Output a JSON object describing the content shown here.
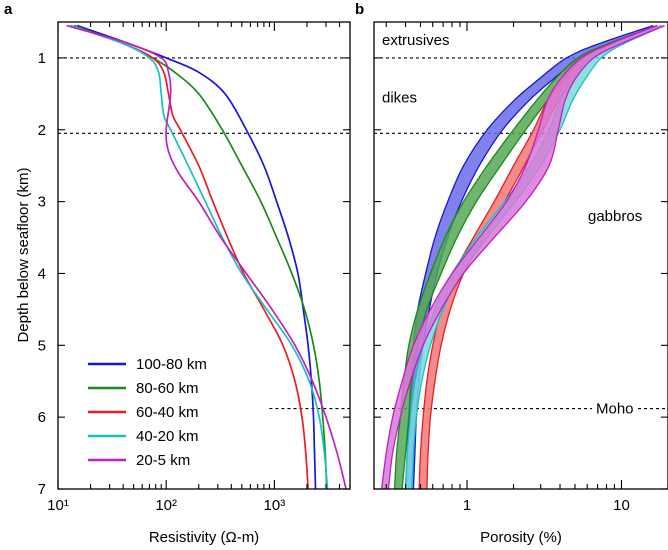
{
  "panel_a": {
    "letter": "a",
    "xlabel": "Resistivity (Ω-m)",
    "ylabel": "Depth below seafloor (km)"
  },
  "panel_b": {
    "letter": "b",
    "xlabel": "Porosity (%)"
  },
  "zones": [
    "extrusives",
    "dikes",
    "gabbros",
    "Moho"
  ],
  "chart_data": [
    {
      "type": "line",
      "panel": "a",
      "title": "",
      "xlabel": "Resistivity (Ω-m)",
      "ylabel": "Depth below seafloor (km)",
      "xscale": "log",
      "xlim": [
        10,
        5000
      ],
      "ylim": [
        7,
        0.5
      ],
      "x_ticks": [
        {
          "value": 10,
          "label": "10¹"
        },
        {
          "value": 100,
          "label": "10²"
        },
        {
          "value": 1000,
          "label": "10³"
        }
      ],
      "y_ticks": [
        1,
        2,
        3,
        4,
        5,
        6,
        7
      ],
      "legend": "lower-left",
      "reference_lines": [
        {
          "depth": 1.0,
          "extent": "full"
        },
        {
          "depth": 2.05,
          "extent": "full"
        },
        {
          "depth": 5.88,
          "extent": "right-portion"
        }
      ],
      "series": [
        {
          "name": "100-80 km",
          "color": "#1515e0",
          "depth": [
            0.55,
            0.8,
            1.0,
            1.2,
            1.5,
            2.0,
            2.5,
            3.0,
            3.5,
            4.0,
            4.5,
            5.0,
            5.5,
            6.0,
            6.5,
            7.0
          ],
          "resistivity": [
            15,
            45,
            100,
            200,
            350,
            550,
            800,
            1050,
            1350,
            1650,
            1850,
            2050,
            2200,
            2300,
            2350,
            2400
          ]
        },
        {
          "name": "80-60 km",
          "color": "#1a8a1a",
          "depth": [
            0.55,
            0.8,
            1.0,
            1.2,
            1.5,
            2.0,
            2.5,
            3.0,
            3.5,
            4.0,
            4.5,
            5.0,
            5.5,
            6.0,
            6.5,
            7.0
          ],
          "resistivity": [
            14,
            40,
            75,
            120,
            200,
            330,
            500,
            750,
            1050,
            1450,
            1900,
            2300,
            2600,
            2800,
            2950,
            3050
          ]
        },
        {
          "name": "60-40 km",
          "color": "#ee1c1c",
          "depth": [
            0.55,
            0.8,
            1.0,
            1.2,
            1.5,
            1.8,
            2.0,
            2.5,
            3.0,
            3.5,
            4.0,
            4.5,
            5.0,
            5.5,
            6.0,
            6.5,
            7.0
          ],
          "resistivity": [
            13,
            40,
            75,
            95,
            105,
            115,
            135,
            200,
            270,
            370,
            520,
            800,
            1200,
            1550,
            1800,
            1950,
            2050
          ]
        },
        {
          "name": "40-20 km",
          "color": "#19c0c0",
          "depth": [
            0.55,
            0.8,
            1.0,
            1.2,
            1.5,
            1.8,
            2.0,
            2.5,
            3.0,
            3.5,
            4.0,
            4.5,
            5.0,
            5.5,
            6.0,
            6.5,
            7.0
          ],
          "resistivity": [
            13,
            40,
            70,
            85,
            90,
            95,
            110,
            160,
            230,
            330,
            500,
            850,
            1450,
            2100,
            2600,
            2900,
            3100
          ]
        },
        {
          "name": "20-5 km",
          "color": "#c21fc2",
          "depth": [
            0.55,
            0.8,
            1.0,
            1.2,
            1.5,
            2.0,
            2.3,
            2.6,
            3.0,
            3.5,
            4.0,
            4.5,
            5.0,
            5.5,
            6.0,
            6.5,
            7.0
          ],
          "resistivity": [
            12,
            45,
            90,
            105,
            110,
            100,
            105,
            130,
            200,
            320,
            550,
            950,
            1550,
            2250,
            3000,
            3800,
            4600
          ]
        }
      ]
    },
    {
      "type": "area",
      "panel": "b",
      "title": "",
      "xlabel": "Porosity (%)",
      "xscale": "log",
      "xlim": [
        0.25,
        20
      ],
      "ylim": [
        7,
        0.5
      ],
      "x_ticks": [
        {
          "value": 1,
          "label": "1"
        },
        {
          "value": 10,
          "label": "10"
        }
      ],
      "reference_lines": [
        {
          "depth": 1.0,
          "extent": "full"
        },
        {
          "depth": 2.05,
          "extent": "full"
        },
        {
          "depth": 5.88,
          "extent": "full"
        }
      ],
      "zone_labels": [
        {
          "text": "extrusives",
          "depth": 0.75
        },
        {
          "text": "dikes",
          "depth": 1.55
        },
        {
          "text": "gabbros",
          "depth": 3.2
        },
        {
          "text": "Moho",
          "depth": 5.88
        }
      ],
      "series": [
        {
          "name": "100-80 km",
          "color": "#1515e0",
          "fill": "#6b6be8",
          "depth": [
            0.55,
            0.8,
            1.0,
            1.3,
            1.6,
            2.0,
            2.5,
            3.0,
            3.5,
            4.0,
            4.5,
            5.0,
            5.5,
            6.0,
            6.5,
            7.0
          ],
          "low": [
            16,
            7.2,
            4.4,
            2.9,
            2.0,
            1.35,
            0.95,
            0.75,
            0.62,
            0.54,
            0.48,
            0.45,
            0.43,
            0.42,
            0.41,
            0.4
          ],
          "high": [
            18,
            8.5,
            5.4,
            3.6,
            2.5,
            1.7,
            1.2,
            0.92,
            0.75,
            0.64,
            0.57,
            0.52,
            0.49,
            0.47,
            0.46,
            0.45
          ]
        },
        {
          "name": "80-60 km",
          "color": "#1a8a1a",
          "fill": "#56a856",
          "depth": [
            0.55,
            0.8,
            1.0,
            1.3,
            1.6,
            2.0,
            2.5,
            3.0,
            3.5,
            4.0,
            4.5,
            5.0,
            5.5,
            6.0,
            6.5,
            7.0
          ],
          "low": [
            17,
            8.2,
            5.2,
            3.7,
            2.8,
            2.0,
            1.35,
            0.95,
            0.72,
            0.58,
            0.48,
            0.42,
            0.39,
            0.37,
            0.35,
            0.34
          ],
          "high": [
            19,
            9.6,
            6.2,
            4.4,
            3.3,
            2.4,
            1.65,
            1.15,
            0.86,
            0.68,
            0.55,
            0.48,
            0.44,
            0.42,
            0.4,
            0.38
          ]
        },
        {
          "name": "60-40 km",
          "color": "#ee1c1c",
          "fill": "#f07878",
          "depth": [
            0.55,
            0.8,
            1.0,
            1.3,
            1.6,
            2.0,
            2.5,
            3.0,
            3.5,
            4.0,
            4.5,
            5.0,
            5.5,
            6.0,
            6.5,
            7.0
          ],
          "low": [
            17,
            8.5,
            5.6,
            4.2,
            3.3,
            2.7,
            2.0,
            1.5,
            1.1,
            0.82,
            0.68,
            0.6,
            0.55,
            0.52,
            0.5,
            0.49
          ],
          "high": [
            19,
            9.8,
            6.6,
            4.9,
            3.9,
            3.1,
            2.35,
            1.75,
            1.3,
            0.95,
            0.78,
            0.68,
            0.62,
            0.58,
            0.56,
            0.55
          ]
        },
        {
          "name": "40-20 km",
          "color": "#19c0c0",
          "fill": "#78dada",
          "depth": [
            0.55,
            0.8,
            1.0,
            1.3,
            1.6,
            2.0,
            2.5,
            3.0,
            3.5,
            4.0,
            4.5,
            5.0,
            5.5,
            6.0,
            6.5,
            7.0
          ],
          "low": [
            17,
            9.0,
            6.2,
            4.8,
            4.0,
            3.4,
            2.55,
            1.75,
            1.15,
            0.8,
            0.62,
            0.52,
            0.46,
            0.43,
            0.41,
            0.4
          ],
          "high": [
            19,
            10.4,
            7.4,
            5.8,
            4.8,
            4.0,
            3.0,
            2.05,
            1.35,
            0.92,
            0.7,
            0.58,
            0.51,
            0.47,
            0.45,
            0.44
          ]
        },
        {
          "name": "20-5 km",
          "color": "#c21fc2",
          "fill": "#d878d8",
          "depth": [
            0.55,
            0.8,
            1.0,
            1.3,
            1.6,
            2.0,
            2.5,
            3.0,
            3.5,
            4.0,
            4.5,
            5.0,
            5.5,
            6.0,
            6.5,
            7.0
          ],
          "low": [
            17,
            8.5,
            5.5,
            4.0,
            3.3,
            2.9,
            2.4,
            1.8,
            1.2,
            0.8,
            0.58,
            0.45,
            0.38,
            0.33,
            0.3,
            0.28
          ],
          "high": [
            19,
            10.0,
            6.6,
            5.0,
            4.3,
            3.9,
            3.4,
            2.4,
            1.5,
            0.95,
            0.68,
            0.52,
            0.43,
            0.37,
            0.33,
            0.31
          ]
        }
      ]
    }
  ]
}
